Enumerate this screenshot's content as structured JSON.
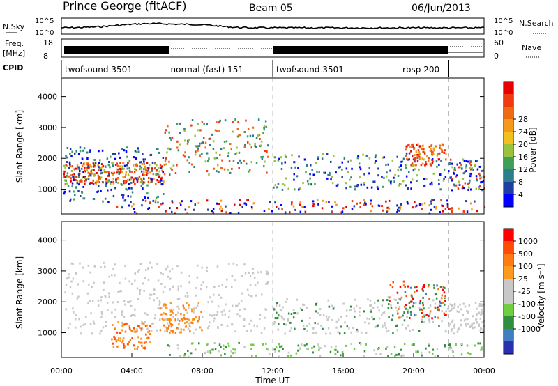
{
  "header": {
    "station": "Prince George (fitACF)",
    "beam": "Beam 05",
    "date": "06/Jun/2013"
  },
  "noise_panel": {
    "left_label": "N.Sky",
    "right_label": "N.Search",
    "left_ticks": [
      "10^5",
      "10^0"
    ],
    "right_ticks": [
      "10^5",
      "10^0"
    ]
  },
  "freq_panel": {
    "left_label_1": "Freq.",
    "left_label_2": "[MHz]",
    "right_label": "Nave",
    "left_ticks": [
      "18",
      "8"
    ],
    "right_ticks": [
      "60",
      "0"
    ]
  },
  "cpid": {
    "label": "CPID",
    "segments": [
      {
        "name": "twofsound 3501",
        "start_h": 0,
        "end_h": 6
      },
      {
        "name": "normal (fast) 151",
        "start_h": 6,
        "end_h": 12
      },
      {
        "name": "twofsound 3501",
        "start_h": 12,
        "end_h": 22
      },
      {
        "name": "rbsp 200",
        "start_h": 22,
        "end_h": 24
      }
    ]
  },
  "time_axis": {
    "title": "Time UT",
    "ticks": [
      "00:00",
      "04:00",
      "08:00",
      "12:00",
      "16:00",
      "20:00",
      "00:00"
    ]
  },
  "colors": {
    "power_scale": [
      "#0000ff",
      "#1f3fa0",
      "#2e7d8c",
      "#3f9f5a",
      "#9bc23c",
      "#f0c020",
      "#f39a1a",
      "#f06a14",
      "#f03a10",
      "#e60000"
    ],
    "velocity_scale": [
      "#2a2fb0",
      "#3d7fc0",
      "#2f8f3f",
      "#6fcf40",
      "#c8c8c8",
      "#c8c8c8",
      "#ff9a20",
      "#ff7a10",
      "#ff4a08",
      "#ff0000"
    ]
  },
  "chart_data": [
    {
      "type": "heatmap",
      "name": "power",
      "ylabel": "Slant Range [km]",
      "yticks": [
        1000,
        2000,
        3000,
        4000
      ],
      "ylim": [
        200,
        4600
      ],
      "xlim_hours": [
        0,
        24
      ],
      "colorbar": {
        "title": "Power [dB]",
        "ticks": [
          "4",
          "8",
          "12",
          "16",
          "20",
          "24",
          "28"
        ]
      }
    },
    {
      "type": "heatmap",
      "name": "velocity",
      "ylabel": "Slant Range [km]",
      "yticks": [
        1000,
        2000,
        3000,
        4000
      ],
      "ylim": [
        200,
        4600
      ],
      "xlim_hours": [
        0,
        24
      ],
      "colorbar": {
        "title": "Velocity [m s⁻¹]",
        "ticks": [
          "1000",
          "500",
          "100",
          "25",
          "-25",
          "-100",
          "-500",
          "-1000"
        ]
      }
    }
  ]
}
